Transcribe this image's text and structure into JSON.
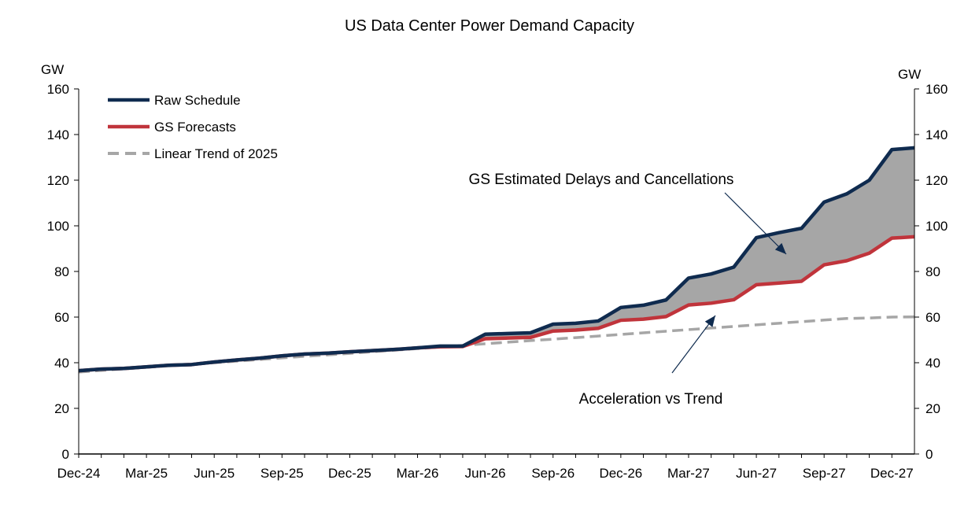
{
  "chart_data": {
    "type": "line",
    "title": "US Data Center Power Demand Capacity",
    "y_unit_left": "GW",
    "y_unit_right": "GW",
    "ylim": [
      0,
      160
    ],
    "y_ticks": [
      0,
      20,
      40,
      60,
      80,
      100,
      120,
      140,
      160
    ],
    "x_tick_labels": [
      "Dec-24",
      "Mar-25",
      "Jun-25",
      "Sep-25",
      "Dec-25",
      "Mar-26",
      "Jun-26",
      "Sep-26",
      "Dec-26",
      "Mar-27",
      "Jun-27",
      "Sep-27",
      "Dec-27"
    ],
    "x": [
      "Dec-24",
      "Jan-25",
      "Feb-25",
      "Mar-25",
      "Apr-25",
      "May-25",
      "Jun-25",
      "Jul-25",
      "Aug-25",
      "Sep-25",
      "Oct-25",
      "Nov-25",
      "Dec-25",
      "Jan-26",
      "Feb-26",
      "Mar-26",
      "Apr-26",
      "May-26",
      "Jun-26",
      "Jul-26",
      "Aug-26",
      "Sep-26",
      "Oct-26",
      "Nov-26",
      "Dec-26",
      "Jan-27",
      "Feb-27",
      "Mar-27",
      "Apr-27",
      "May-27",
      "Jun-27",
      "Jul-27",
      "Aug-27",
      "Sep-27",
      "Oct-27",
      "Nov-27",
      "Dec-27",
      "Jan-28"
    ],
    "series": [
      {
        "name": "Raw Schedule",
        "color": "#0f2b4f",
        "values": [
          36.5,
          37.2,
          37.5,
          38.2,
          38.9,
          39.2,
          40.3,
          41.2,
          42.0,
          43.0,
          43.8,
          44.2,
          44.8,
          45.3,
          45.8,
          46.5,
          47.3,
          47.3,
          52.5,
          52.8,
          53.1,
          56.9,
          57.3,
          58.3,
          64.2,
          65.2,
          67.5,
          77.1,
          78.9,
          81.9,
          94.8,
          97.0,
          98.9,
          110.4,
          114.0,
          120.0,
          133.4,
          134.2
        ]
      },
      {
        "name": "GS Forecasts",
        "color": "#c0343b",
        "values": [
          36.5,
          37.2,
          37.5,
          38.2,
          38.9,
          39.2,
          40.3,
          41.2,
          42.0,
          43.0,
          43.8,
          44.2,
          44.8,
          45.3,
          45.8,
          46.5,
          47.0,
          47.1,
          50.5,
          50.8,
          51.1,
          53.9,
          54.3,
          55.1,
          58.6,
          59.1,
          60.2,
          65.3,
          66.1,
          67.6,
          74.2,
          74.9,
          75.7,
          82.9,
          84.7,
          88.0,
          94.6,
          95.2
        ]
      },
      {
        "name": "Linear Trend of 2025",
        "color": "#a6a6a6",
        "dashed": true,
        "values": [
          35.9,
          36.6,
          37.3,
          38.0,
          38.6,
          39.3,
          40.0,
          40.7,
          41.4,
          42.1,
          42.8,
          43.4,
          44.1,
          44.8,
          45.5,
          46.2,
          46.9,
          47.6,
          48.3,
          49.0,
          49.7,
          50.3,
          51.0,
          51.7,
          52.4,
          53.1,
          53.8,
          54.5,
          55.2,
          55.9,
          56.6,
          57.3,
          58.0,
          58.7,
          59.4,
          59.6,
          60.0,
          60.1
        ]
      }
    ],
    "fill_between": {
      "upper": "Raw Schedule",
      "lower": "GS Forecasts",
      "color": "#a6a6a6"
    },
    "legend": {
      "placement": "top-left"
    },
    "grid": false,
    "annotations": [
      {
        "text": "GS Estimated Delays and Cancellations",
        "target": "shaded gap between Raw Schedule and GS Forecasts"
      },
      {
        "text": "Acceleration vs Trend",
        "target": "gap between GS Forecasts and Linear Trend of 2025"
      }
    ]
  }
}
